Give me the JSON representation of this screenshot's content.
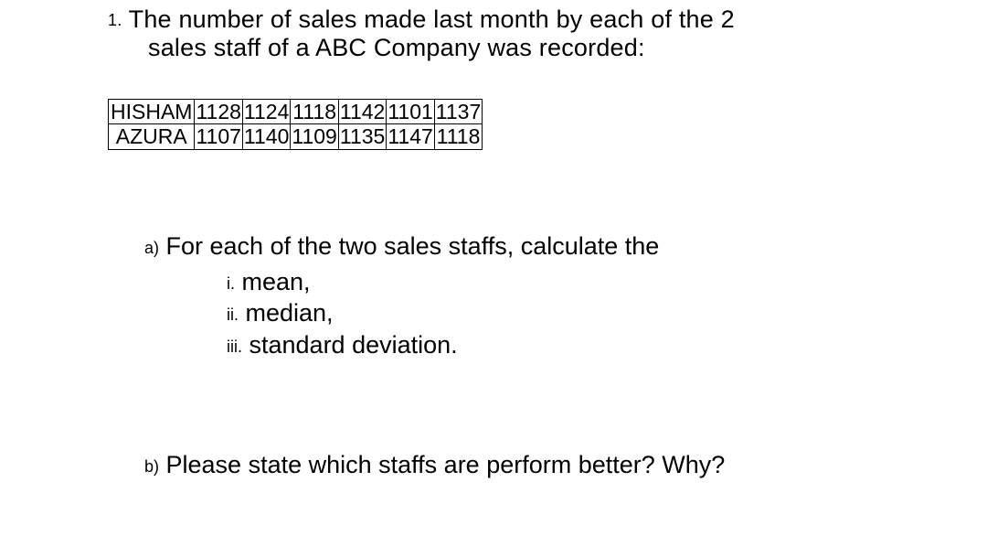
{
  "question": {
    "number": "1.",
    "line1_after": " The number of sales made last month by each of the 2",
    "line2": "sales staff of a ABC Company was recorded:"
  },
  "table": {
    "rows": [
      {
        "name": "HISHAM",
        "values": [
          "1128",
          "1124",
          "1118",
          "1142",
          "1101",
          "1137"
        ]
      },
      {
        "name": "AZURA",
        "values": [
          "1107",
          "1140",
          "1109",
          "1135",
          "1147",
          "1118"
        ]
      }
    ]
  },
  "partA": {
    "label": "a)",
    "text": " For each of the two sales staffs, calculate the",
    "items": [
      {
        "roman": "i.",
        "text": " mean,"
      },
      {
        "roman": "ii.",
        "text": " median,"
      },
      {
        "roman": "iii.",
        "text": " standard deviation."
      }
    ]
  },
  "partB": {
    "label": "b)",
    "text": " Please state which staffs are perform better? Why?"
  }
}
